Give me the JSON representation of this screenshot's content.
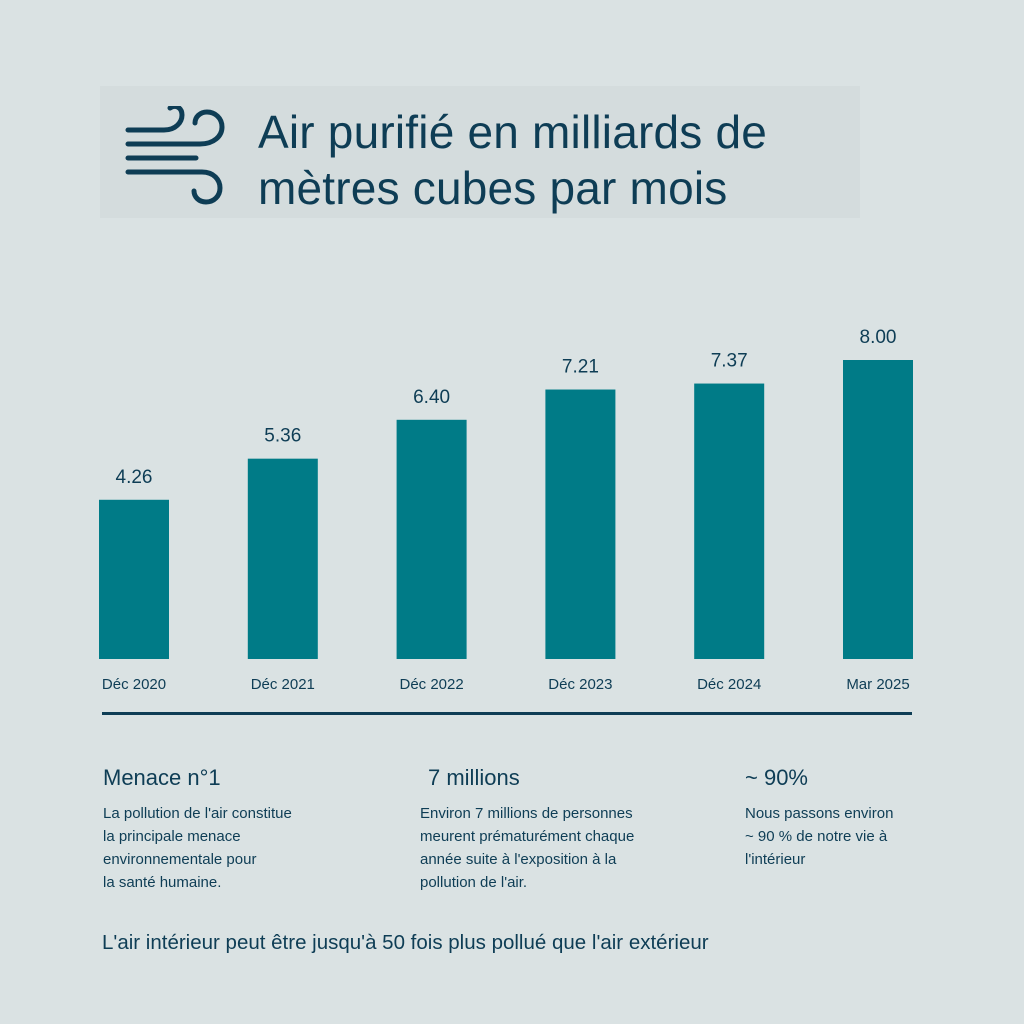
{
  "header": {
    "icon": "wind-icon",
    "title_line1": "Air purifié en milliards de",
    "title_line2": "mètres cubes par mois"
  },
  "colors": {
    "bar": "#007b87",
    "text": "#0e3d55",
    "background": "#dae2e3"
  },
  "chart_data": {
    "type": "bar",
    "title": "Air purifié en milliards de mètres cubes par mois",
    "categories": [
      "Déc 2020",
      "Déc 2021",
      "Déc 2022",
      "Déc 2023",
      "Déc 2024",
      "Mar 2025"
    ],
    "values": [
      4.26,
      5.36,
      6.4,
      7.21,
      7.37,
      8.0
    ],
    "value_labels": [
      "4.26",
      "5.36",
      "6.40",
      "7.21",
      "7.37",
      "8.00"
    ],
    "ylim": [
      0,
      8.0
    ],
    "grid": false
  },
  "stats": [
    {
      "heading": "Menace n°1",
      "lines": [
        "La pollution de l'air constitue",
        "la principale menace",
        "environnementale pour",
        "la santé humaine."
      ]
    },
    {
      "heading": "7 millions",
      "lines": [
        "Environ 7 millions de personnes",
        "meurent prématurément chaque",
        "année suite à l'exposition à la",
        "pollution de l'air."
      ]
    },
    {
      "heading": "~ 90%",
      "lines": [
        "Nous passons environ",
        "~ 90 % de notre vie à",
        "l'intérieur"
      ]
    }
  ],
  "footer": "L'air intérieur peut être jusqu'à 50 fois plus pollué que l'air extérieur"
}
